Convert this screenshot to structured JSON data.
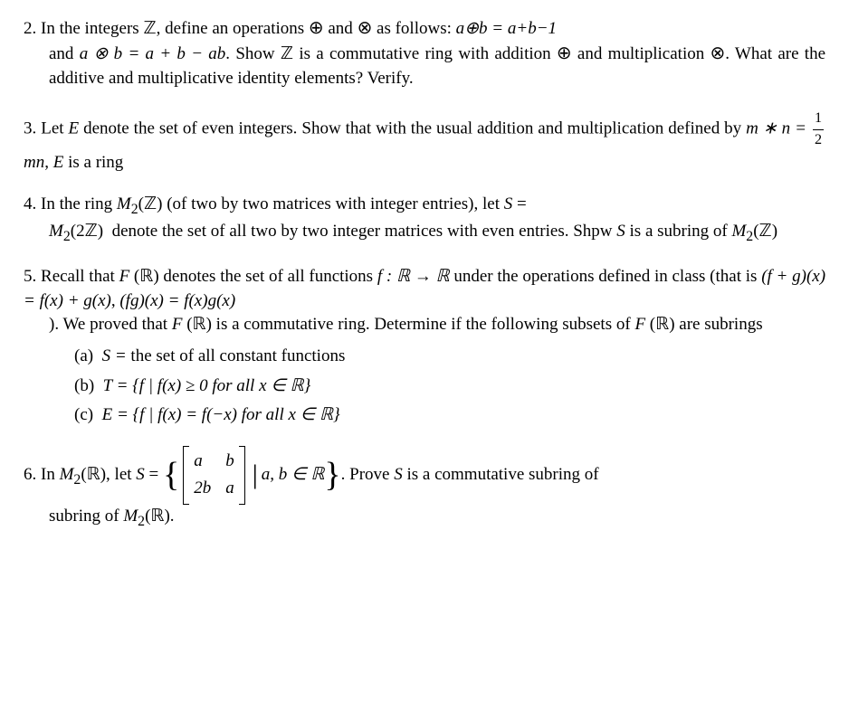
{
  "problems": {
    "p2": {
      "num": "2.",
      "text_a": "In the integers ",
      "Z": "ℤ",
      "text_b": ", define an operations ",
      "oplus": "⊕",
      "text_c": " and ",
      "otimes": "⊗",
      "text_d": " as follows: ",
      "eq1": "a⊕b = a+b−1",
      "text_e": " and ",
      "eq2": "a ⊗ b = a + b − ab",
      "text_f": ". Show ",
      "text_g": " is a commutative ring with addition ",
      "text_h": " and multiplication ",
      "text_i": ". What are the additive and multiplicative identity elements? Verify."
    },
    "p3": {
      "num": "3.",
      "text_a": "Let ",
      "E": "E",
      "text_b": " denote the set of even integers. Show that with the usual addition and multiplication defined by ",
      "eq_lhs": "m ∗ n = ",
      "frac_top": "1",
      "frac_bot": "2",
      "eq_rhs": "mn",
      "text_c": ", ",
      "text_d": " is a ring"
    },
    "p4": {
      "num": "4.",
      "text_a": "In the ring ",
      "M2Z": "M",
      "sub2": "2",
      "paren_open": "(",
      "Z": "ℤ",
      "paren_close": ")",
      "text_b": " (of two by two matrices with integer entries), let ",
      "S": "S",
      "eq": " = ",
      "twoZ": "2ℤ",
      "text_c": " denote the set of all two by two integer matrices with even entries. Shpw ",
      "text_d": " is a subring of "
    },
    "p5": {
      "num": "5.",
      "text_a": "Recall that ",
      "FR": "F",
      "paren_open": " (",
      "R": "ℝ",
      "paren_close": ")",
      "text_b": " denotes the set of all functions ",
      "fdef": "f : ℝ → ℝ",
      "text_c": " under the operations defined in class (that is ",
      "eq1": "(f + g)(x) = f(x) + g(x)",
      "text_c2": ", ",
      "eq2": "(fg)(x) = f(x)g(x)",
      "text_d": " ). We proved that ",
      "text_e": " is a commutative ring. Determine if the following subsets of ",
      "text_f": " are subrings",
      "a_label": "(a)",
      "a_text": "S = ",
      "a_text2": "the set of all constant functions",
      "b_label": "(b)",
      "b_text": "T = {f | f(x) ≥ 0 for all x ∈ ℝ}",
      "c_label": "(c)",
      "c_text": "E = {f | f(x) = f(−x) for all x ∈ ℝ}"
    },
    "p6": {
      "num": "6.",
      "text_a": "In ",
      "M2R_M": "M",
      "sub2": "2",
      "paren_open": "(",
      "R": "ℝ",
      "paren_close": ")",
      "text_b": ", let ",
      "S": "S",
      "eq": " = ",
      "m11": "a",
      "m12": "b",
      "m21": "2b",
      "m22": "a",
      "cond": " a, b ∈ ℝ",
      "text_c": ". Prove ",
      "text_d": " is a commutative subring of ",
      "text_e": "."
    }
  },
  "style": {
    "font_size_pt": 14,
    "text_color": "#000000",
    "background_color": "#ffffff",
    "font_family": "serif"
  }
}
